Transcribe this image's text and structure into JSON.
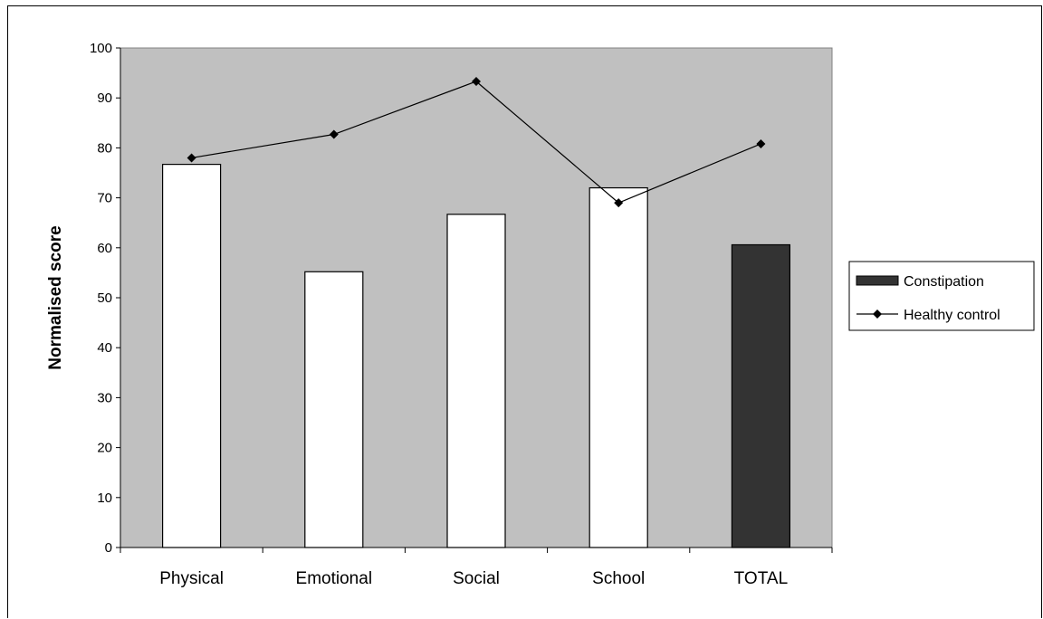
{
  "chart_data": {
    "type": "bar",
    "title": "",
    "xlabel": "",
    "ylabel": "Normalised score",
    "ylim": [
      0,
      100
    ],
    "yticks": [
      0,
      10,
      20,
      30,
      40,
      50,
      60,
      70,
      80,
      90,
      100
    ],
    "categories": [
      "Physical",
      "Emotional",
      "Social",
      "School",
      "TOTAL"
    ],
    "series": [
      {
        "name": "Constipation",
        "kind": "bar",
        "values": [
          76.7,
          55.2,
          66.7,
          72.0,
          60.6
        ],
        "colors": [
          "#ffffff",
          "#ffffff",
          "#ffffff",
          "#ffffff",
          "#333333"
        ]
      },
      {
        "name": "Healthy control",
        "kind": "line",
        "marker": "diamond",
        "color": "#000000",
        "values": [
          78.0,
          82.7,
          93.3,
          69.0,
          80.8
        ]
      }
    ],
    "plot_background": "#c0c0c0",
    "grid": false,
    "legend_position": "right"
  }
}
